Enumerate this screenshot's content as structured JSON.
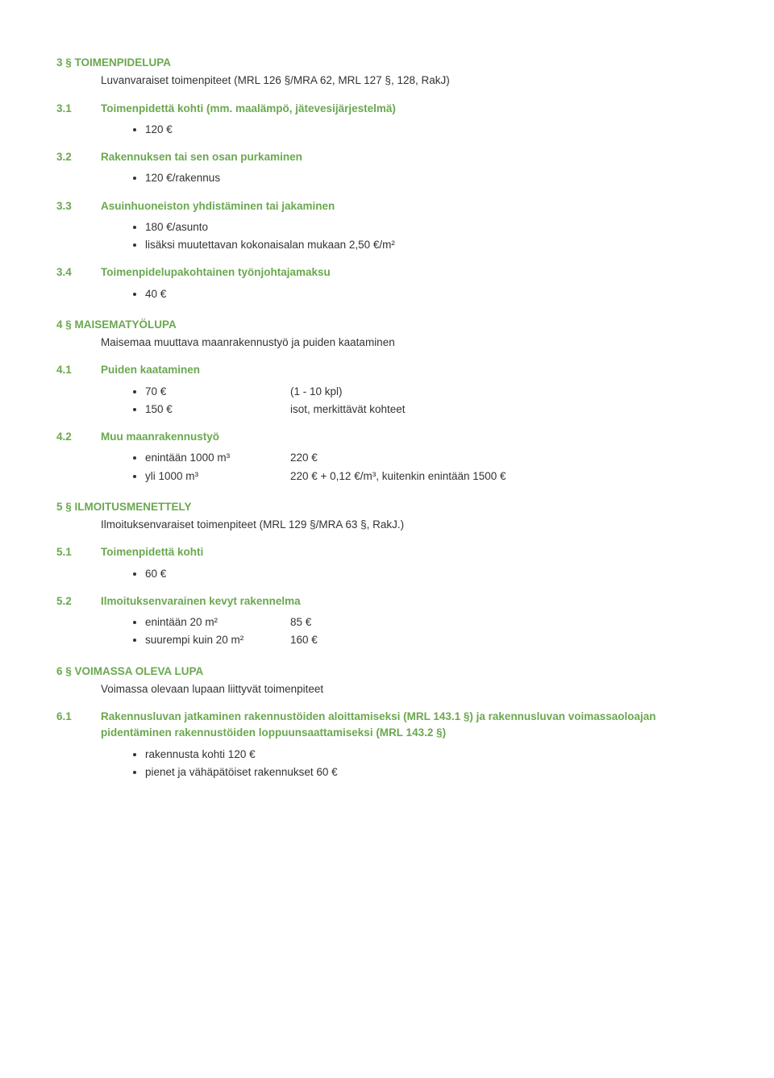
{
  "colors": {
    "accent": "#6aa84f",
    "text": "#333333",
    "background": "#ffffff"
  },
  "typography": {
    "font_family": "Verdana, Geneva, sans-serif",
    "base_size_pt": 10,
    "line_height": 1.5,
    "heading_weight": "bold"
  },
  "sec3": {
    "num": "3 §",
    "title": "TOIMENPIDELUPA",
    "sub": "Luvanvaraiset toimenpiteet (MRL 126 §/MRA 62, MRL 127 §, 128, RakJ)",
    "s1": {
      "num": "3.1",
      "label": "Toimenpidettä kohti (mm. maalämpö, jätevesijärjestelmä)",
      "items": [
        "120 €"
      ]
    },
    "s2": {
      "num": "3.2",
      "label": "Rakennuksen tai sen osan purkaminen",
      "items": [
        "120 €/rakennus"
      ]
    },
    "s3": {
      "num": "3.3",
      "label": "Asuinhuoneiston yhdistäminen tai jakaminen",
      "items": [
        "180 €/asunto",
        "lisäksi muutettavan kokonaisalan mukaan 2,50 €/m²"
      ]
    },
    "s4": {
      "num": "3.4",
      "label": "Toimenpidelupakohtainen työnjohtajamaksu",
      "items": [
        "40 €"
      ]
    }
  },
  "sec4": {
    "num": "4 §",
    "title": "MAISEMATYÖLUPA",
    "sub": "Maisemaa muuttava maanrakennustyö ja puiden kaataminen",
    "s1": {
      "num": "4.1",
      "label": "Puiden kaataminen",
      "pairs": [
        {
          "left": "70 €",
          "right": "(1 - 10 kpl)"
        },
        {
          "left": "150 €",
          "right": "isot, merkittävät kohteet"
        }
      ]
    },
    "s2": {
      "num": "4.2",
      "label": "Muu maanrakennustyö",
      "pairs": [
        {
          "left": "enintään 1000 m³",
          "right": "220 €"
        },
        {
          "left": "yli 1000 m³",
          "right": "220 € + 0,12 €/m³, kuitenkin enintään 1500 €"
        }
      ]
    }
  },
  "sec5": {
    "num": "5 §",
    "title": "ILMOITUSMENETTELY",
    "sub": "Ilmoituksenvaraiset toimenpiteet (MRL 129 §/MRA 63 §, RakJ.)",
    "s1": {
      "num": "5.1",
      "label": "Toimenpidettä kohti",
      "items": [
        "60 €"
      ]
    },
    "s2": {
      "num": "5.2",
      "label": "Ilmoituksenvarainen kevyt rakennelma",
      "pairs": [
        {
          "left": "enintään 20 m²",
          "right": "85 €"
        },
        {
          "left": "suurempi kuin 20 m²",
          "right": "160 €"
        }
      ]
    }
  },
  "sec6": {
    "num": "6 §",
    "title": "VOIMASSA OLEVA LUPA",
    "sub": "Voimassa olevaan lupaan liittyvät toimenpiteet",
    "s1": {
      "num": "6.1",
      "label": "Rakennusluvan jatkaminen rakennustöiden aloittamiseksi (MRL 143.1 §) ja rakennusluvan voimassaoloajan pidentäminen rakennustöiden loppuunsaattamiseksi (MRL 143.2 §)",
      "items": [
        "rakennusta kohti 120 €",
        "pienet ja vähäpätöiset rakennukset 60 €"
      ]
    }
  }
}
